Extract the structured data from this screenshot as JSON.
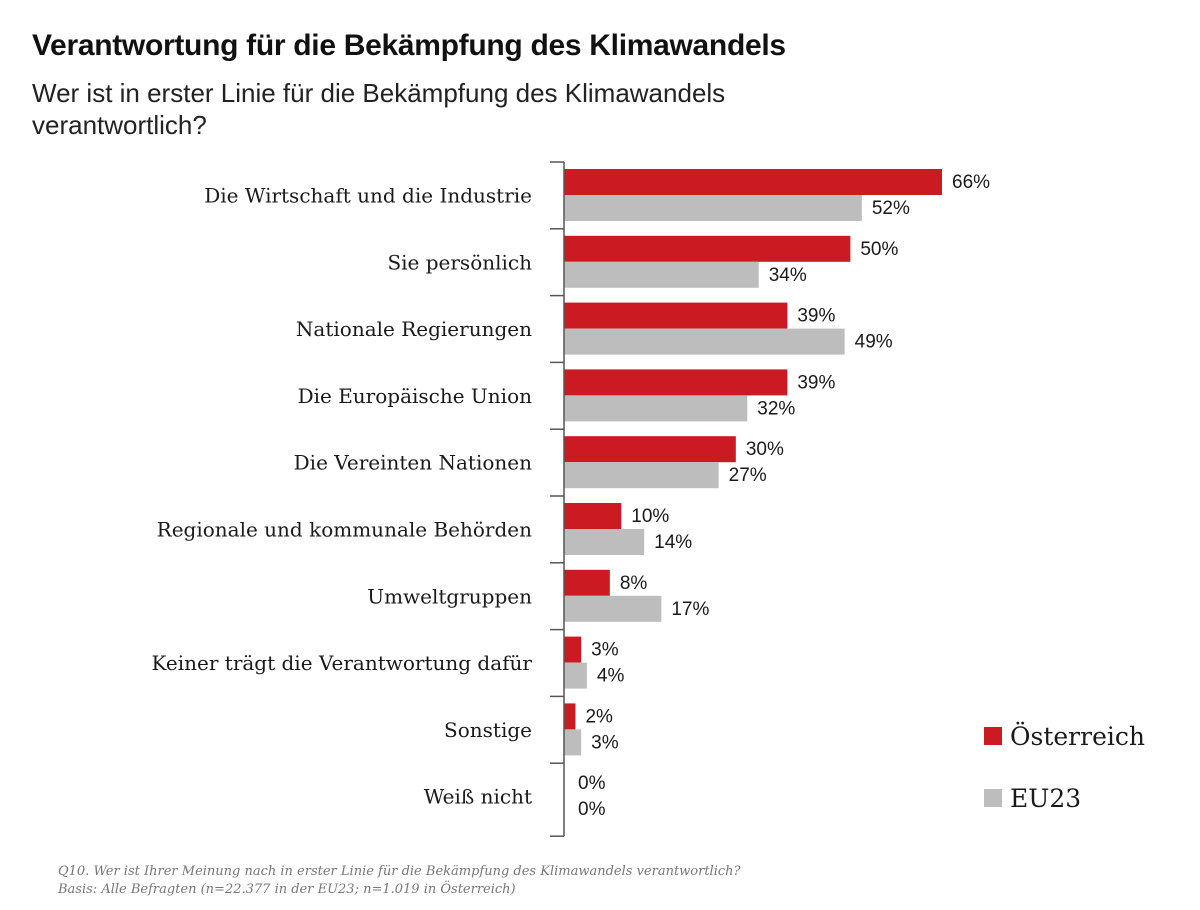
{
  "header": {
    "title": "Verantwortung für die Bekämpfung des Klimawandels",
    "subtitle": "Wer ist in erster Linie für die Bekämpfung des Klimawandels verantwortlich?"
  },
  "chart_data": {
    "type": "bar",
    "orientation": "horizontal",
    "categories": [
      "Die Wirtschaft und die Industrie",
      "Sie persönlich",
      "Nationale Regierungen",
      "Die Europäische Union",
      "Die Vereinten Nationen",
      "Regionale und kommunale Behörden",
      "Umweltgruppen",
      "Keiner trägt die Verantwortung dafür",
      "Sonstige",
      "Weiß nicht"
    ],
    "series": [
      {
        "name": "Österreich",
        "color": "#cc1a22",
        "values": [
          66,
          50,
          39,
          39,
          30,
          10,
          8,
          3,
          2,
          0
        ],
        "labels": [
          "66%",
          "50%",
          "39%",
          "39%",
          "30%",
          "10%",
          "8%",
          "3%",
          "2%",
          "0%"
        ]
      },
      {
        "name": "EU23",
        "color": "#bdbdbd",
        "values": [
          52,
          34,
          49,
          32,
          27,
          14,
          17,
          4,
          3,
          0
        ],
        "labels": [
          "52%",
          "34%",
          "49%",
          "32%",
          "27%",
          "14%",
          "17%",
          "4%",
          "3%",
          "0%"
        ]
      }
    ],
    "unit": "%",
    "legend_position": "bottom-right",
    "grid": false
  },
  "legend": {
    "items": [
      {
        "label": "Österreich",
        "color": "#cc1a22"
      },
      {
        "label": "EU23",
        "color": "#bdbdbd"
      }
    ]
  },
  "footnote": {
    "line1": "Q10. Wer ist Ihrer Meinung nach in erster Linie für die Bekämpfung des Klimawandels verantwortlich?",
    "line2": "Basis: Alle Befragten (n=22.377 in der EU23; n=1.019 in Österreich)"
  }
}
